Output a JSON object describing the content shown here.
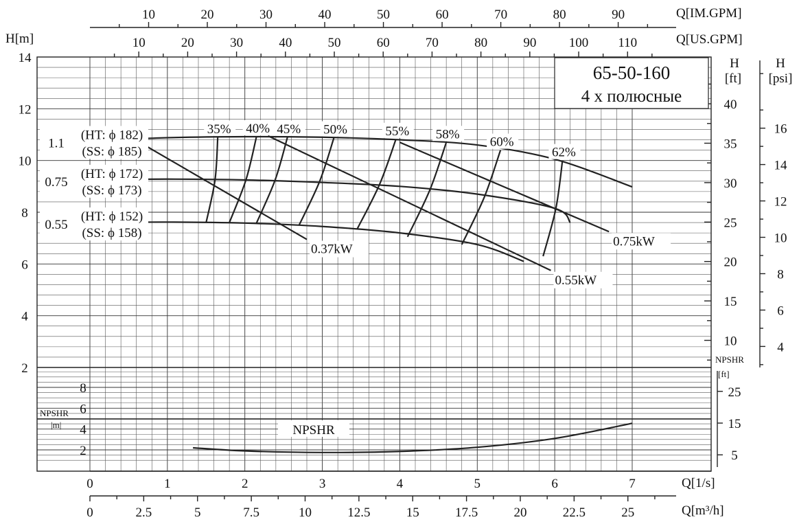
{
  "title": {
    "model": "65-50-160",
    "subtitle": "4 х полюсные"
  },
  "axes": {
    "h_m_label": "H[m]",
    "h_ft_label_top": "H",
    "h_ft_label_bottom": "[ft]",
    "h_psi_label_top": "H",
    "h_psi_label_bottom": "[psi]",
    "q_ls_label": "Q[1/s]",
    "q_m3h_label": "Q[m³/h]",
    "q_imgpm_label": "Q[IM.GPM]",
    "q_usgpm_label": "Q[US.GPM]",
    "npshr_m_label_top": "NPSHR",
    "npshr_m_label_bottom": "|m|",
    "npshr_ft_label_top": "NPSHR",
    "npshr_ft_label_bottom": "[ft]"
  },
  "chart_data": {
    "type": "line",
    "x_unit": "l/s",
    "xlim": [
      0,
      7
    ],
    "ylim": [
      1.5,
      14
    ],
    "ticks": {
      "q_ls": [
        "0",
        "1",
        "2",
        "3",
        "4",
        "5",
        "6",
        "7"
      ],
      "q_m3h": [
        "0",
        "2.5",
        "5",
        "7.5",
        "10",
        "12.5",
        "15",
        "17.5",
        "20",
        "22.5",
        "25"
      ],
      "q_imgpm": [
        "10",
        "20",
        "30",
        "40",
        "50",
        "60",
        "70",
        "80",
        "90"
      ],
      "q_usgpm": [
        "10",
        "20",
        "30",
        "40",
        "50",
        "60",
        "70",
        "80",
        "90",
        "100",
        "110"
      ],
      "h_m": [
        "2",
        "4",
        "6",
        "8",
        "10",
        "12",
        "14"
      ],
      "h_ft": [
        "10",
        "15",
        "20",
        "25",
        "30",
        "35",
        "40"
      ],
      "h_psi": [
        "4",
        "6",
        "8",
        "10",
        "12",
        "14",
        "16"
      ],
      "npshr_m": [
        "2",
        "4",
        "6",
        "8"
      ],
      "npshr_ft": [
        "5",
        "15",
        "25"
      ]
    },
    "head_curves": [
      {
        "impeller": "1.1",
        "ht_label": "(HT: ϕ 182)",
        "ss_label": "(SS: ϕ 185)",
        "points": [
          [
            0,
            10.75
          ],
          [
            1,
            10.88
          ],
          [
            2,
            10.92
          ],
          [
            3,
            10.9
          ],
          [
            4,
            10.8
          ],
          [
            5,
            10.6
          ],
          [
            6,
            10.05
          ],
          [
            7,
            8.98
          ]
        ]
      },
      {
        "impeller": "0.75",
        "ht_label": "(HT: ϕ 172)",
        "ss_label": "(SS: ϕ 173)",
        "points": [
          [
            0,
            9.25
          ],
          [
            1,
            9.28
          ],
          [
            2,
            9.25
          ],
          [
            3,
            9.15
          ],
          [
            4,
            9.0
          ],
          [
            5,
            8.7
          ],
          [
            6,
            8.15
          ],
          [
            6.2,
            7.6
          ]
        ]
      },
      {
        "impeller": "0.55",
        "ht_label": "(HT: ϕ 152)",
        "ss_label": "(SS: ϕ 158)",
        "points": [
          [
            0,
            7.6
          ],
          [
            1,
            7.62
          ],
          [
            2,
            7.58
          ],
          [
            3,
            7.45
          ],
          [
            4,
            7.2
          ],
          [
            5,
            6.75
          ],
          [
            5.6,
            6.1
          ]
        ]
      }
    ],
    "power_lines": [
      {
        "label": "0.37kW",
        "points": [
          [
            0.5,
            10.95
          ],
          [
            2.8,
            6.95
          ]
        ]
      },
      {
        "label": "0.55kW",
        "points": [
          [
            2.3,
            10.95
          ],
          [
            5.95,
            5.75
          ]
        ]
      },
      {
        "label": "0.75kW",
        "points": [
          [
            4.0,
            10.7
          ],
          [
            6.7,
            7.25
          ]
        ]
      }
    ],
    "efficiency_lines": [
      {
        "label": "35%",
        "points": [
          [
            1.5,
            7.6
          ],
          [
            1.65,
            10.9
          ]
        ]
      },
      {
        "label": "40%",
        "points": [
          [
            1.8,
            7.6
          ],
          [
            2.15,
            10.92
          ]
        ]
      },
      {
        "label": "45%",
        "points": [
          [
            2.15,
            7.58
          ],
          [
            2.55,
            10.9
          ]
        ]
      },
      {
        "label": "50%",
        "points": [
          [
            2.7,
            7.5
          ],
          [
            3.15,
            10.88
          ]
        ]
      },
      {
        "label": "55%",
        "points": [
          [
            3.45,
            7.35
          ],
          [
            3.95,
            10.82
          ]
        ]
      },
      {
        "label": "58%",
        "points": [
          [
            4.1,
            7.05
          ],
          [
            4.6,
            10.7
          ]
        ]
      },
      {
        "label": "60%",
        "points": [
          [
            4.8,
            6.75
          ],
          [
            5.3,
            10.4
          ]
        ]
      },
      {
        "label": "62%",
        "points": [
          [
            5.85,
            6.3
          ],
          [
            6.1,
            10.0
          ]
        ]
      }
    ],
    "npshr_curve": {
      "label": "NPSHR",
      "points": [
        [
          1.33,
          2.2
        ],
        [
          2,
          1.9
        ],
        [
          3,
          1.75
        ],
        [
          4,
          1.85
        ],
        [
          5,
          2.25
        ],
        [
          6,
          3.1
        ],
        [
          7,
          4.55
        ]
      ]
    }
  }
}
